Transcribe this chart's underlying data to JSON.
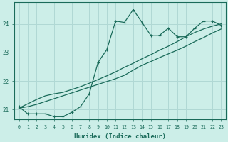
{
  "xlabel": "Humidex (Indice chaleur)",
  "bg_color": "#cceee8",
  "grid_color": "#b0d8d4",
  "line_color": "#1a6b5a",
  "xlim": [
    -0.5,
    23.5
  ],
  "ylim": [
    20.65,
    24.75
  ],
  "xticks": [
    0,
    1,
    2,
    3,
    4,
    5,
    6,
    7,
    8,
    9,
    10,
    11,
    12,
    13,
    14,
    15,
    16,
    17,
    18,
    19,
    20,
    21,
    22,
    23
  ],
  "yticks": [
    21,
    22,
    23,
    24
  ],
  "main_y": [
    21.1,
    20.85,
    20.85,
    20.85,
    20.75,
    20.75,
    20.9,
    21.1,
    21.55,
    22.65,
    23.1,
    24.1,
    24.05,
    24.5,
    24.05,
    23.6,
    23.6,
    23.85,
    23.55,
    23.55,
    23.85,
    24.1,
    24.1,
    23.95
  ],
  "line2_y": [
    21.05,
    21.1,
    21.18,
    21.28,
    21.38,
    21.48,
    21.58,
    21.68,
    21.78,
    21.88,
    21.98,
    22.08,
    22.2,
    22.38,
    22.55,
    22.68,
    22.82,
    22.95,
    23.08,
    23.22,
    23.38,
    23.52,
    23.68,
    23.82
  ],
  "line3_y": [
    21.05,
    21.2,
    21.35,
    21.48,
    21.55,
    21.6,
    21.7,
    21.8,
    21.92,
    22.05,
    22.18,
    22.32,
    22.48,
    22.62,
    22.78,
    22.92,
    23.08,
    23.22,
    23.38,
    23.55,
    23.7,
    23.82,
    23.92,
    24.0
  ]
}
